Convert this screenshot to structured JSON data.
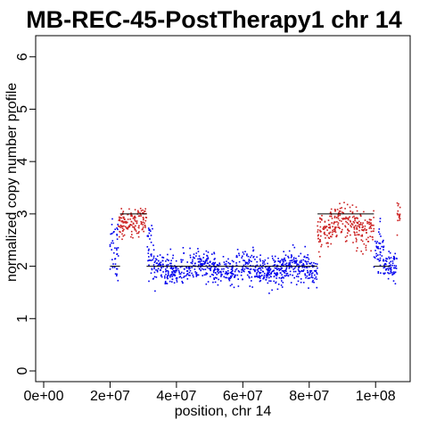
{
  "chart_data": {
    "type": "scatter",
    "title": "MB-REC-45-PostTherapy1 chr 14",
    "xlabel": "position, chr 14",
    "ylabel": "normalized copy number profile",
    "xlim": [
      0,
      108000000
    ],
    "ylim": [
      0,
      6.2
    ],
    "x_ticks": [
      0,
      20000000,
      40000000,
      60000000,
      80000000,
      100000000
    ],
    "x_tick_labels": [
      "0e+00",
      "2e+07",
      "4e+07",
      "6e+07",
      "8e+07",
      "1e+08"
    ],
    "y_ticks": [
      0,
      1,
      2,
      3,
      4,
      5,
      6
    ],
    "y_tick_labels": [
      "0",
      "1",
      "2",
      "3",
      "4",
      "5",
      "6"
    ],
    "grid": false,
    "colors": {
      "normal": "#0000ee",
      "gain": "#cc2222",
      "segment": "#000000"
    },
    "series": [
      {
        "color": "blue",
        "regions": [
          {
            "x_start": 20000000,
            "x_end": 22500000,
            "mean": 2.4,
            "sd": 0.35
          },
          {
            "x_start": 31000000,
            "x_end": 33000000,
            "mean": 2.2,
            "sd": 0.25
          },
          {
            "x_start": 33000000,
            "x_end": 82500000,
            "mean": 1.95,
            "sd": 0.14
          },
          {
            "x_start": 99500000,
            "x_end": 102500000,
            "mean": 2.3,
            "sd": 0.25
          },
          {
            "x_start": 102500000,
            "x_end": 106500000,
            "mean": 1.95,
            "sd": 0.13
          }
        ]
      },
      {
        "color": "red",
        "regions": [
          {
            "x_start": 22500000,
            "x_end": 31000000,
            "mean": 2.85,
            "sd": 0.14
          },
          {
            "x_start": 82500000,
            "x_end": 99500000,
            "mean": 2.75,
            "sd": 0.17
          },
          {
            "x_start": 106500000,
            "x_end": 107500000,
            "mean": 2.95,
            "sd": 0.12
          }
        ]
      }
    ],
    "segments": [
      {
        "x_start": 20000000,
        "x_end": 23000000,
        "y": 2.0
      },
      {
        "x_start": 23000000,
        "x_end": 31000000,
        "y": 3.0
      },
      {
        "x_start": 31000000,
        "x_end": 82500000,
        "y": 2.0
      },
      {
        "x_start": 82500000,
        "x_end": 99500000,
        "y": 3.0
      },
      {
        "x_start": 99500000,
        "x_end": 104500000,
        "y": 2.0
      }
    ]
  }
}
